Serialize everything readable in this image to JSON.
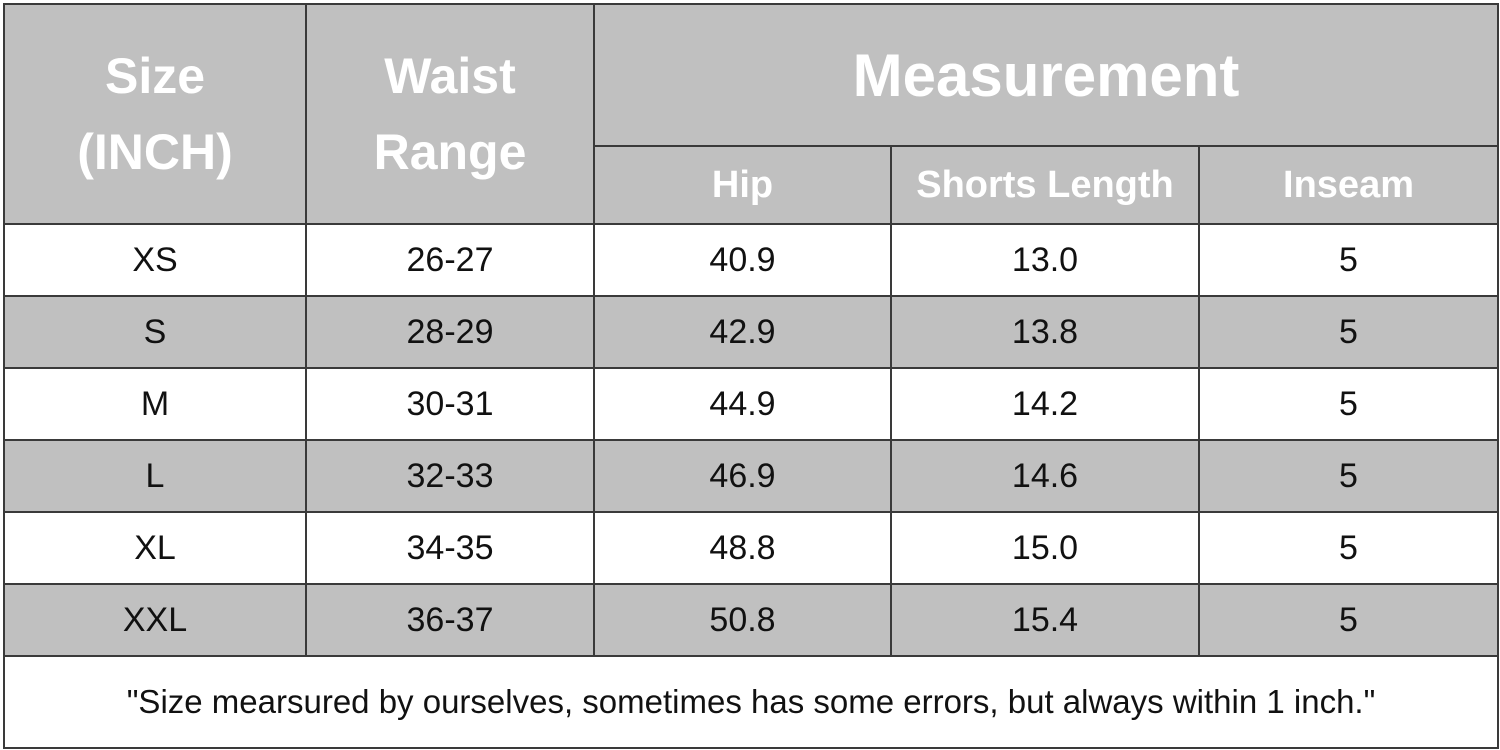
{
  "table": {
    "header": {
      "size": [
        "Size",
        "(INCH)"
      ],
      "waist": [
        "Waist",
        "Range"
      ],
      "measurement": "Measurement",
      "subcolumns": [
        "Hip",
        "Shorts Length",
        "Inseam"
      ]
    },
    "rows": [
      [
        "XS",
        "26-27",
        "40.9",
        "13.0",
        "5"
      ],
      [
        "S",
        "28-29",
        "42.9",
        "13.8",
        "5"
      ],
      [
        "M",
        "30-31",
        "44.9",
        "14.2",
        "5"
      ],
      [
        "L",
        "32-33",
        "46.9",
        "14.6",
        "5"
      ],
      [
        "XL",
        "34-35",
        "48.8",
        "15.0",
        "5"
      ],
      [
        "XXL",
        "36-37",
        "50.8",
        "15.4",
        "5"
      ]
    ],
    "note": "\"Size mearsured by ourselves, sometimes has some errors, but always within 1 inch.\""
  }
}
